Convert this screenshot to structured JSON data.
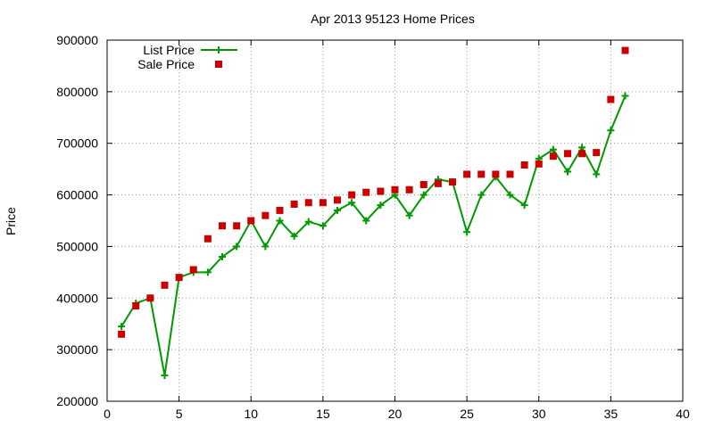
{
  "chart_data": {
    "type": "line",
    "title": "Apr 2013 95123 Home Prices",
    "xlabel": "",
    "ylabel": "Price",
    "xlim": [
      0,
      40
    ],
    "ylim": [
      200000,
      900000
    ],
    "xticks": [
      0,
      5,
      10,
      15,
      20,
      25,
      30,
      35,
      40
    ],
    "yticks": [
      200000,
      300000,
      400000,
      500000,
      600000,
      700000,
      800000,
      900000
    ],
    "grid": true,
    "legend_position": "top-left",
    "series": [
      {
        "name": "List Price",
        "style": "line-plus",
        "color": "#009900",
        "x": [
          1,
          2,
          3,
          4,
          5,
          6,
          7,
          8,
          9,
          10,
          11,
          12,
          13,
          14,
          15,
          16,
          17,
          18,
          19,
          20,
          21,
          22,
          23,
          24,
          25,
          26,
          27,
          28,
          29,
          30,
          31,
          32,
          33,
          34,
          35,
          36
        ],
        "y": [
          345000,
          390000,
          400000,
          250000,
          440000,
          450000,
          450000,
          480000,
          500000,
          550000,
          500000,
          550000,
          520000,
          548000,
          540000,
          570000,
          585000,
          550000,
          580000,
          600000,
          560000,
          600000,
          630000,
          625000,
          528000,
          600000,
          635000,
          600000,
          580000,
          670000,
          688000,
          645000,
          692000,
          640000,
          725000,
          792000
        ]
      },
      {
        "name": "Sale Price",
        "style": "square",
        "color": "#cc0000",
        "x": [
          1,
          2,
          3,
          4,
          5,
          6,
          7,
          8,
          9,
          10,
          11,
          12,
          13,
          14,
          15,
          16,
          17,
          18,
          19,
          20,
          21,
          22,
          23,
          24,
          25,
          26,
          27,
          28,
          29,
          30,
          31,
          32,
          33,
          34,
          35,
          36
        ],
        "y": [
          330000,
          385000,
          400000,
          425000,
          440000,
          455000,
          515000,
          540000,
          540000,
          550000,
          560000,
          570000,
          582000,
          585000,
          585000,
          590000,
          600000,
          605000,
          607000,
          610000,
          610000,
          620000,
          622000,
          625000,
          640000,
          640000,
          640000,
          640000,
          658000,
          660000,
          675000,
          680000,
          680000,
          682000,
          785000,
          880000
        ]
      }
    ]
  }
}
